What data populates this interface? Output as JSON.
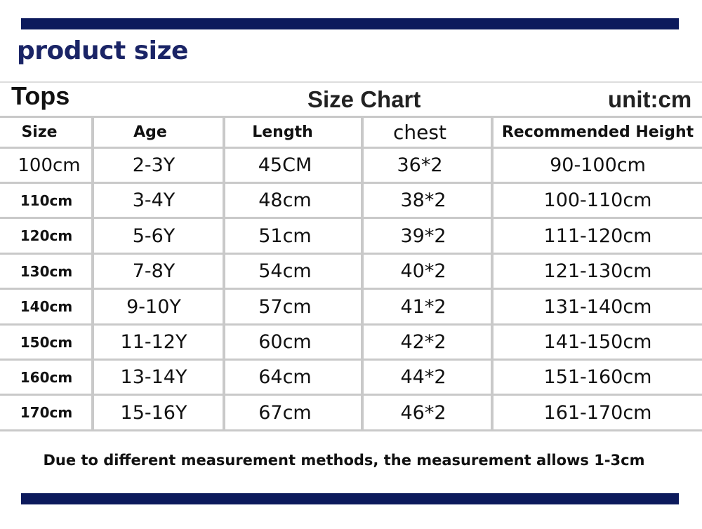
{
  "heading": "product size",
  "subheader": {
    "left": "Tops",
    "title": "Size Chart",
    "unit": "unit:cm"
  },
  "table": {
    "headers": [
      "Size",
      "Age",
      "Length",
      "chest",
      "Recommended Height"
    ],
    "rows": [
      [
        "100cm",
        "2-3Y",
        "45CM",
        "36*2",
        "90-100cm"
      ],
      [
        "110cm",
        "3-4Y",
        "48cm",
        "38*2",
        "100-110cm"
      ],
      [
        "120cm",
        "5-6Y",
        "51cm",
        "39*2",
        "111-120cm"
      ],
      [
        "130cm",
        "7-8Y",
        "54cm",
        "40*2",
        "121-130cm"
      ],
      [
        "140cm",
        "9-10Y",
        "57cm",
        "41*2",
        "131-140cm"
      ],
      [
        "150cm",
        "11-12Y",
        "60cm",
        "42*2",
        "141-150cm"
      ],
      [
        "160cm",
        "13-14Y",
        "64cm",
        "44*2",
        "151-160cm"
      ],
      [
        "170cm",
        "15-16Y",
        "67cm",
        "46*2",
        "161-170cm"
      ]
    ]
  },
  "note": "Due to different measurement methods, the measurement allows 1-3cm",
  "colors": {
    "accent_bar": "#0c1a5c",
    "heading": "#1a2466",
    "grid": "#c9c9c9"
  }
}
